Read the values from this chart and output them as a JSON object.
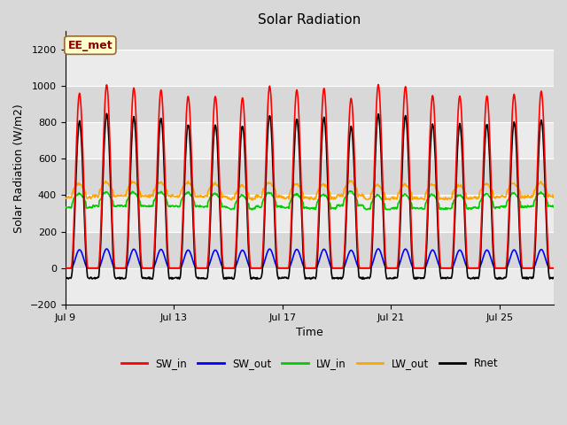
{
  "title": "Solar Radiation",
  "xlabel": "Time",
  "ylabel": "Solar Radiation (W/m2)",
  "watermark": "EE_met",
  "ylim": [
    -200,
    1300
  ],
  "yticks": [
    -200,
    0,
    200,
    400,
    600,
    800,
    1000,
    1200
  ],
  "xtick_labels": [
    "Jul 9",
    "Jul 13",
    "Jul 17",
    "Jul 21",
    "Jul 25"
  ],
  "xtick_positions": [
    0,
    4,
    8,
    12,
    16
  ],
  "n_days": 18,
  "series": {
    "SW_in": {
      "color": "#ff0000",
      "lw": 1.2
    },
    "SW_out": {
      "color": "#0000ff",
      "lw": 1.2
    },
    "LW_in": {
      "color": "#00cc00",
      "lw": 1.2
    },
    "LW_out": {
      "color": "#ffa500",
      "lw": 1.2
    },
    "Rnet": {
      "color": "#000000",
      "lw": 1.2
    }
  },
  "bg_color": "#d8d8d8",
  "plot_bg_light": "#ebebeb",
  "plot_bg_dark": "#d8d8d8",
  "figsize": [
    6.4,
    4.8
  ],
  "dpi": 100,
  "band_colors": [
    "#ebebeb",
    "#d8d8d8"
  ]
}
